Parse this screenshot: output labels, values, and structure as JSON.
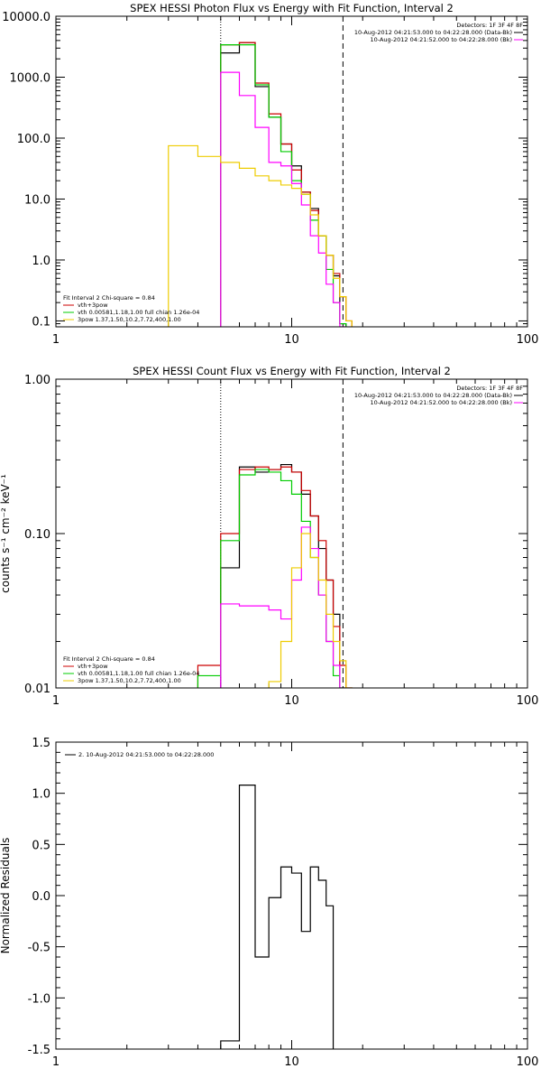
{
  "chart_data": [
    {
      "type": "step",
      "title": "SPEX HESSI Photon Flux vs Energy with Fit Function, Interval 2",
      "xlabel": "",
      "ylabel": "",
      "xscale": "log",
      "yscale": "log",
      "xlim": [
        1,
        100
      ],
      "ylim": [
        0.08,
        10000
      ],
      "xticks": [
        1,
        10,
        100
      ],
      "xtick_labels": [
        "1",
        "10",
        "100"
      ],
      "yticks": [
        0.1,
        1,
        10,
        100,
        1000,
        10000
      ],
      "ytick_labels": [
        "0.1",
        "1.0",
        "10.0",
        "100.0",
        "1000.0",
        "10000.0"
      ],
      "vlines": [
        {
          "x": 5.0,
          "style": "dotted"
        },
        {
          "x": 16.5,
          "style": "dashed"
        }
      ],
      "header": {
        "detectors": "Detectors: 1F 3F 4F 8F",
        "interval_line": "10-Aug-2012 04:21:53.000 to 04:22:28.000 (Data-Bk)",
        "bk_line": "10-Aug-2012 04:21:52.000 to 04:22:28.000 (Bk)"
      },
      "legend": {
        "title": "Fit Interval  2    Chi-square = 0.84",
        "entries": [
          "vth+3pow",
          "vth 0.00581,1.18,1.00  full chian 1.26e-04",
          "3pow 1.37,1.50,10.2,7.72,400,1.00"
        ],
        "placement": "bottom-left"
      },
      "edges": [
        3.0,
        4.0,
        5.0,
        6.0,
        7.0,
        8.0,
        9.0,
        10.0,
        11.0,
        12.0,
        13.0,
        14.0,
        15.0,
        16.0,
        17.0,
        18.0
      ],
      "series": [
        {
          "name": "Data-Bk",
          "color": "#000000",
          "values": [
            null,
            null,
            2500,
            3700,
            700,
            220,
            80,
            35,
            13,
            7,
            2.5,
            1.2,
            0.55,
            0.09,
            null
          ]
        },
        {
          "name": "vth+3pow",
          "color": "#cc0000",
          "values": [
            null,
            null,
            3400,
            3700,
            800,
            250,
            80,
            30,
            13,
            6.5,
            2.5,
            1.2,
            0.6,
            0.25,
            0.1
          ]
        },
        {
          "name": "vth",
          "color": "#00cc00",
          "values": [
            null,
            null,
            3400,
            3400,
            750,
            220,
            60,
            20,
            12,
            4.5,
            2.5,
            0.7,
            0.2,
            0.09,
            null
          ]
        },
        {
          "name": "3pow",
          "color": "#ff00ff",
          "values": [
            null,
            null,
            1200,
            500,
            150,
            40,
            35,
            18,
            8,
            2.5,
            1.3,
            0.4,
            0.2,
            0.08,
            null
          ]
        },
        {
          "name": "3pow",
          "color": "#eecc00",
          "values": [
            75,
            50,
            40,
            32,
            24,
            20,
            17,
            15,
            12,
            5.5,
            2.5,
            1.2,
            0.5,
            0.25,
            0.1
          ]
        }
      ]
    },
    {
      "type": "step",
      "title": "SPEX HESSI Count Flux vs Energy with Fit Function, Interval 2",
      "xlabel": "",
      "ylabel": "counts s⁻¹ cm⁻² keV⁻¹",
      "xscale": "log",
      "yscale": "log",
      "xlim": [
        1,
        100
      ],
      "ylim": [
        0.01,
        1.0
      ],
      "xticks": [
        1,
        10,
        100
      ],
      "xtick_labels": [
        "1",
        "10",
        "100"
      ],
      "yticks": [
        0.01,
        0.1,
        1.0
      ],
      "ytick_labels": [
        "0.01",
        "0.10",
        "1.00"
      ],
      "vlines": [
        {
          "x": 5.0,
          "style": "dotted"
        },
        {
          "x": 16.5,
          "style": "dashed"
        }
      ],
      "header": {
        "detectors": "Detectors: 1F 3F 4F 8F",
        "interval_line": "10-Aug-2012 04:21:53.000 to 04:22:28.000 (Data-Bk)",
        "bk_line": "10-Aug-2012 04:21:52.000 to 04:22:28.000 (Bk)"
      },
      "legend": {
        "title": "Fit Interval  2    Chi-square = 0.84",
        "entries": [
          "vth+3pow",
          "vth 0.00581,1.18,1.00  full chian 1.26e-04",
          "3pow 1.37,1.50,10.2,7.72,400,1.00"
        ],
        "placement": "bottom-left"
      },
      "edges": [
        3.0,
        4.0,
        5.0,
        6.0,
        7.0,
        8.0,
        9.0,
        10.0,
        11.0,
        12.0,
        13.0,
        14.0,
        15.0,
        16.0,
        17.0,
        18.0
      ],
      "series": [
        {
          "name": "Data-Bk",
          "color": "#000000",
          "values": [
            null,
            null,
            0.06,
            0.27,
            0.25,
            0.26,
            0.28,
            0.25,
            0.18,
            0.13,
            0.08,
            0.05,
            0.03,
            0.01,
            null
          ]
        },
        {
          "name": "vth+3pow",
          "color": "#cc0000",
          "values": [
            null,
            0.014,
            0.1,
            0.26,
            0.27,
            0.26,
            0.27,
            0.25,
            0.19,
            0.13,
            0.09,
            0.05,
            0.025,
            0.014,
            0.01
          ]
        },
        {
          "name": "vth",
          "color": "#00cc00",
          "values": [
            null,
            0.012,
            0.09,
            0.24,
            0.26,
            0.25,
            0.22,
            0.18,
            0.12,
            0.07,
            0.04,
            0.02,
            0.012,
            null,
            null
          ]
        },
        {
          "name": "3pow",
          "color": "#ff00ff",
          "values": [
            null,
            null,
            0.035,
            0.034,
            0.034,
            0.032,
            0.028,
            0.05,
            0.11,
            0.08,
            0.04,
            0.02,
            0.014,
            null,
            null
          ]
        },
        {
          "name": "3pow",
          "color": "#eecc00",
          "values": [
            null,
            null,
            null,
            null,
            null,
            0.011,
            0.02,
            0.06,
            0.1,
            0.07,
            0.05,
            0.03,
            0.02,
            0.015,
            0.01
          ]
        }
      ]
    },
    {
      "type": "step",
      "title": "",
      "xlabel": "",
      "ylabel": "Normalized Residuals",
      "xscale": "log",
      "yscale": "linear",
      "xlim": [
        1,
        100
      ],
      "ylim": [
        -1.5,
        1.5
      ],
      "xticks": [
        1,
        10,
        100
      ],
      "xtick_labels": [
        "1",
        "10",
        "100"
      ],
      "yticks": [
        -1.5,
        -1.0,
        -0.5,
        0.0,
        0.5,
        1.0,
        1.5
      ],
      "ytick_labels": [
        "-1.5",
        "-1.0",
        "-0.5",
        "0.0",
        "0.5",
        "1.0",
        "1.5"
      ],
      "legend": {
        "entries": [
          "2. 10-Aug-2012 04:21:53.000 to 04:22:28.000"
        ],
        "placement": "top-left"
      },
      "edges": [
        5.0,
        6.0,
        7.0,
        8.0,
        9.0,
        10.0,
        11.0,
        12.0,
        13.0,
        14.0,
        15.0,
        16.0,
        17.0
      ],
      "series": [
        {
          "name": "2. 10-Aug-2012 04:21:53.000 to 04:22:28.000",
          "color": "#000000",
          "values": [
            -1.42,
            1.08,
            -0.6,
            -0.02,
            0.28,
            0.22,
            -0.35,
            0.28,
            0.15,
            -0.1,
            null,
            null
          ]
        }
      ]
    }
  ]
}
